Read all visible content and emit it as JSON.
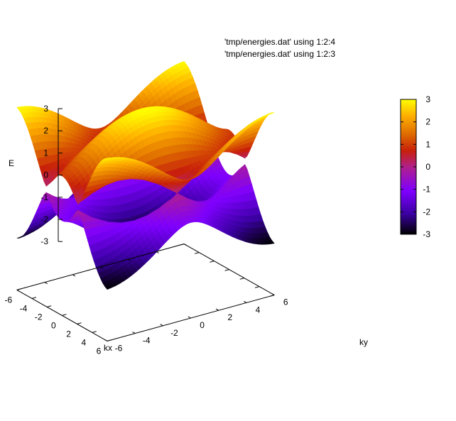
{
  "chart_data": {
    "type": "surface3d",
    "title": "",
    "legend": {
      "placement": "top-center",
      "entries": [
        "'tmp/energies.dat' using 1:2:4",
        "'tmp/energies.dat' using 1:2:3"
      ]
    },
    "xlabel": "kx",
    "ylabel": "ky",
    "zlabel": "E",
    "xlim": [
      -6,
      6
    ],
    "ylim": [
      -6,
      6
    ],
    "zlim": [
      -3,
      3
    ],
    "x_ticks": [
      "-6",
      "-4",
      "-2",
      "0",
      "2",
      "4",
      "6"
    ],
    "y_ticks": [
      "-6",
      "-4",
      "-2",
      "0",
      "2",
      "4",
      "6"
    ],
    "z_ticks": [
      "3",
      "2",
      "1",
      "0",
      "-1",
      "-2",
      "-3"
    ],
    "colorbar": {
      "range": [
        -3,
        3
      ],
      "ticks": [
        "3",
        "2",
        "1",
        "0",
        "-1",
        "-2",
        "-3"
      ],
      "palette": [
        "#000000",
        "#3a00a0",
        "#7f00ff",
        "#b0208a",
        "#c8200a",
        "#e07000",
        "#ff8c00",
        "#ffe000",
        "#ffff00"
      ]
    },
    "series": [
      {
        "name": "'tmp/energies.dat' using 1:2:4",
        "description_type": "upper band"
      },
      {
        "name": "'tmp/energies.dat' using 1:2:3",
        "description_type": "lower band"
      }
    ]
  }
}
